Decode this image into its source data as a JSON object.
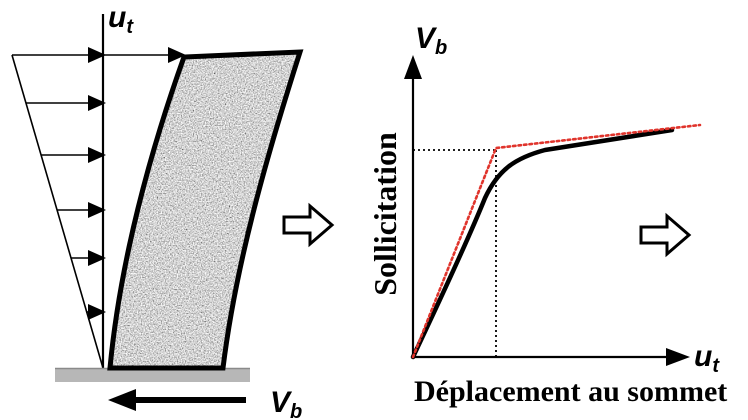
{
  "labels": {
    "top_displacement": {
      "symbol": "u",
      "subscript": "t"
    },
    "base_shear": {
      "symbol": "V",
      "subscript": "b"
    }
  },
  "graph": {
    "y_axis_symbol": {
      "symbol": "V",
      "subscript": "b"
    },
    "x_axis_symbol": {
      "symbol": "u",
      "subscript": "t"
    },
    "y_axis_title": "Sollicitation",
    "x_axis_title": "Déplacement au sommet"
  },
  "transition_arrows": {
    "icon": "outline-right-arrow-icon"
  },
  "colors": {
    "line": "#000000",
    "idealization": "#e0342c",
    "ground": "#b7b7b7",
    "background": "#ffffff"
  }
}
